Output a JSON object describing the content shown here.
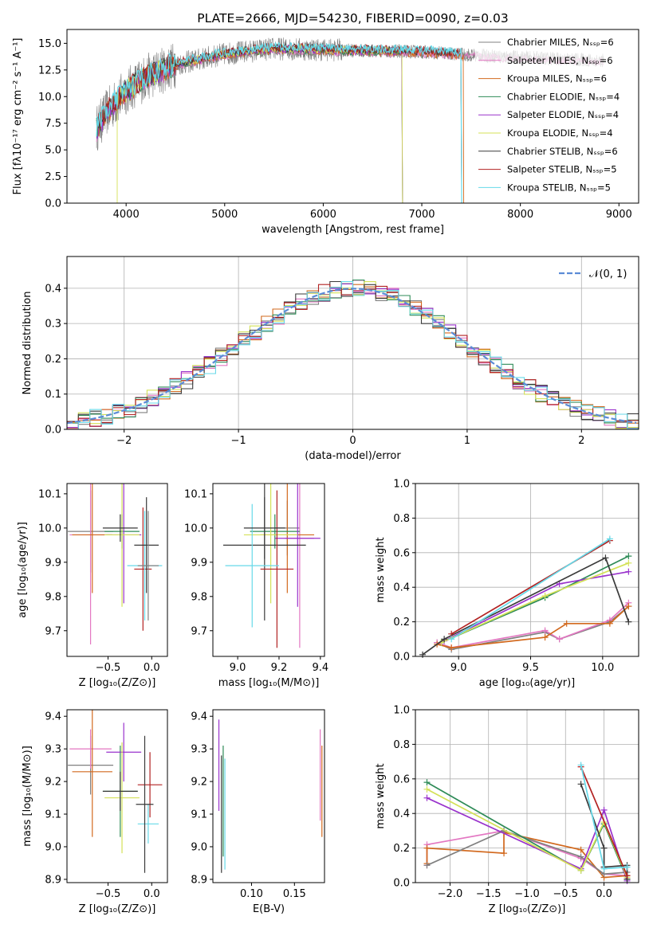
{
  "title": "PLATE=2666, MJD=54230, FIBERID=0090, z=0.03",
  "colors": {
    "Chabrier MILES": "#808080",
    "Salpeter MILES": "#e377c2",
    "Kroupa MILES": "#d2691e",
    "Chabrier ELODIE": "#2e8b57",
    "Salpeter ELODIE": "#9932cc",
    "Kroupa ELODIE": "#d4e157",
    "Chabrier STELIB": "#3a3a3a",
    "Salpeter STELIB": "#b22222",
    "Kroupa STELIB": "#66d9e8",
    "normal_curve": "#5b8bd6"
  },
  "chart_data": [
    {
      "id": "spectrum",
      "type": "line",
      "title": "PLATE=2666, MJD=54230, FIBERID=0090, z=0.03",
      "xlabel": "wavelength [Angstrom, rest frame]",
      "ylabel": "Flux [fλ10⁻¹⁷ erg cm⁻² s⁻¹ A⁻¹]",
      "xlim": [
        3400,
        9200
      ],
      "ylim": [
        0,
        16.3
      ],
      "xticks": [
        "4000",
        "5000",
        "6000",
        "7000",
        "8000",
        "9000"
      ],
      "yticks": [
        "0.0",
        "2.5",
        "5.0",
        "7.5",
        "10.0",
        "12.5",
        "15.0"
      ],
      "legend": [
        "Chabrier MILES, Nₛₛₚ=6",
        "Salpeter MILES, Nₛₛₚ=6",
        "Kroupa MILES, Nₛₛₚ=6",
        "Chabrier ELODIE, Nₛₛₚ=4",
        "Salpeter ELODIE, Nₛₛₚ=4",
        "Kroupa ELODIE, Nₛₛₚ=4",
        "Chabrier STELIB, Nₛₛₚ=6",
        "Salpeter STELIB, Nₛₛₚ=5",
        "Kroupa STELIB, Nₛₛₚ=5"
      ],
      "legend_position": "upper-right",
      "data_x_range": [
        3700,
        8850
      ],
      "continuum": [
        [
          3700,
          7
        ],
        [
          3800,
          8.5
        ],
        [
          3900,
          9.5
        ],
        [
          4000,
          10.5
        ],
        [
          4200,
          11.8
        ],
        [
          4500,
          13
        ],
        [
          5000,
          14
        ],
        [
          5500,
          14.5
        ],
        [
          6000,
          14.4
        ],
        [
          6500,
          14.3
        ],
        [
          7000,
          14.2
        ],
        [
          7500,
          13.9
        ],
        [
          8000,
          13.7
        ],
        [
          8500,
          13.5
        ],
        [
          8850,
          13.4
        ]
      ]
    },
    {
      "id": "residuals",
      "type": "line",
      "xlabel": "(data-model)/error",
      "ylabel": "Normed distribution",
      "xlim": [
        -2.5,
        2.5
      ],
      "ylim": [
        0,
        0.49
      ],
      "xticks": [
        "−2",
        "−1",
        "0",
        "1",
        "2"
      ],
      "yticks": [
        "0.0",
        "0.1",
        "0.2",
        "0.3",
        "0.4"
      ],
      "legend": "𝒩(0, 1)",
      "legend_position": "upper-right",
      "bin_width": 0.1,
      "description_curve": "gaussian N(0,1) pdf"
    },
    {
      "id": "age_vs_Z",
      "type": "scatter",
      "xlabel": "Z [log₁₀(Z/Z⊙)]",
      "ylabel": "age  [log₁₀(age/yr)]",
      "xlim": [
        -0.97,
        0.18
      ],
      "ylim": [
        9.625,
        10.13
      ],
      "xticks": [
        "−0.5",
        "0.0"
      ],
      "yticks": [
        "9.7",
        "9.8",
        "9.9",
        "10.0",
        "10.1"
      ],
      "points": [
        {
          "model": "Chabrier MILES",
          "x": -0.7,
          "y": 9.99,
          "xerr": 0.26,
          "yerr": 0.12
        },
        {
          "model": "Salpeter MILES",
          "x": -0.7,
          "y": 9.98,
          "xerr": 0.24,
          "yerr": 0.32
        },
        {
          "model": "Kroupa MILES",
          "x": -0.68,
          "y": 9.98,
          "xerr": 0.23,
          "yerr": 0.17
        },
        {
          "model": "Chabrier ELODIE",
          "x": -0.34,
          "y": 9.99,
          "xerr": 0.2,
          "yerr": 0.05
        },
        {
          "model": "Salpeter ELODIE",
          "x": -0.32,
          "y": 9.98,
          "xerr": 0.2,
          "yerr": 0.2
        },
        {
          "model": "Kroupa ELODIE",
          "x": -0.34,
          "y": 9.98,
          "xerr": 0.2,
          "yerr": 0.21
        },
        {
          "model": "Chabrier STELIB",
          "x": -0.36,
          "y": 10.0,
          "xerr": 0.2,
          "yerr": 0.04
        },
        {
          "model": "Salpeter STELIB",
          "x": -0.1,
          "y": 9.88,
          "xerr": 0.1,
          "yerr": 0.18
        },
        {
          "model": "Kroupa STELIB",
          "x": -0.08,
          "y": 9.89,
          "xerr": 0.2,
          "yerr": 0.16
        },
        {
          "model": "Chabrier STELIB",
          "x": -0.06,
          "y": 9.95,
          "xerr": 0.14,
          "yerr": 0.14
        },
        {
          "model": "Chabrier MILES",
          "x": -0.04,
          "y": 9.89,
          "xerr": 0.12,
          "yerr": 0.16
        }
      ]
    },
    {
      "id": "age_vs_mass",
      "type": "scatter",
      "xlabel": "mass [log₁₀(M/M⊙)]",
      "ylabel": "",
      "xlim": [
        8.88,
        9.42
      ],
      "ylim": [
        9.625,
        10.13
      ],
      "xticks": [
        "9.0",
        "9.2",
        "9.4"
      ],
      "yticks": [
        "9.7",
        "9.8",
        "9.9",
        "10.0",
        "10.1"
      ],
      "points": [
        {
          "model": "Chabrier MILES",
          "x": 9.24,
          "y": 10.0,
          "xerr": 0.06,
          "yerr": 0.08
        },
        {
          "model": "Salpeter MILES",
          "x": 9.3,
          "y": 9.97,
          "xerr": 0.07,
          "yerr": 0.32
        },
        {
          "model": "Kroupa MILES",
          "x": 9.24,
          "y": 9.98,
          "xerr": 0.13,
          "yerr": 0.17
        },
        {
          "model": "Chabrier ELODIE",
          "x": 9.18,
          "y": 9.99,
          "xerr": 0.12,
          "yerr": 0.05
        },
        {
          "model": "Salpeter ELODIE",
          "x": 9.29,
          "y": 9.97,
          "xerr": 0.11,
          "yerr": 0.2
        },
        {
          "model": "Kroupa ELODIE",
          "x": 9.16,
          "y": 9.98,
          "xerr": 0.13,
          "yerr": 0.2
        },
        {
          "model": "Chabrier STELIB",
          "x": 9.13,
          "y": 9.95,
          "xerr": 0.2,
          "yerr": 0.22
        },
        {
          "model": "Salpeter STELIB",
          "x": 9.19,
          "y": 9.88,
          "xerr": 0.08,
          "yerr": 0.23
        },
        {
          "model": "Kroupa STELIB",
          "x": 9.07,
          "y": 9.89,
          "xerr": 0.13,
          "yerr": 0.18
        },
        {
          "model": "Chabrier STELIB",
          "x": 9.13,
          "y": 10.0,
          "xerr": 0.1,
          "yerr": 0.09
        }
      ]
    },
    {
      "id": "weight_vs_age",
      "type": "line",
      "xlabel": "age  [log₁₀(age/yr)]",
      "ylabel": "mass weight",
      "xlim": [
        8.7,
        10.25
      ],
      "ylim": [
        0,
        1.0
      ],
      "xticks": [
        "9.0",
        "9.5",
        "10.0"
      ],
      "yticks": [
        "0.0",
        "0.2",
        "0.4",
        "0.6",
        "0.8",
        "1.0"
      ],
      "series": [
        {
          "model": "Chabrier MILES",
          "x": [
            8.85,
            8.95,
            9.6,
            9.7,
            10.05,
            10.18
          ],
          "y": [
            0.08,
            0.04,
            0.14,
            0.1,
            0.2,
            0.29
          ]
        },
        {
          "model": "Salpeter MILES",
          "x": [
            8.85,
            8.95,
            9.6,
            9.7,
            10.05,
            10.18
          ],
          "y": [
            0.08,
            0.05,
            0.15,
            0.1,
            0.21,
            0.31
          ]
        },
        {
          "model": "Kroupa MILES",
          "x": [
            8.85,
            8.95,
            9.6,
            9.75,
            10.05,
            10.18
          ],
          "y": [
            0.07,
            0.05,
            0.11,
            0.19,
            0.19,
            0.29
          ]
        },
        {
          "model": "Chabrier ELODIE",
          "x": [
            8.88,
            9.6,
            10.18
          ],
          "y": [
            0.08,
            0.34,
            0.58
          ]
        },
        {
          "model": "Salpeter ELODIE",
          "x": [
            8.9,
            9.7,
            10.18
          ],
          "y": [
            0.09,
            0.42,
            0.49
          ]
        },
        {
          "model": "Kroupa ELODIE",
          "x": [
            8.88,
            9.6,
            10.18
          ],
          "y": [
            0.08,
            0.35,
            0.54
          ]
        },
        {
          "model": "Chabrier STELIB",
          "x": [
            8.75,
            8.9,
            10.02,
            10.18
          ],
          "y": [
            0.01,
            0.1,
            0.57,
            0.2
          ]
        },
        {
          "model": "Salpeter STELIB",
          "x": [
            8.95,
            10.05
          ],
          "y": [
            0.13,
            0.67
          ]
        },
        {
          "model": "Kroupa STELIB",
          "x": [
            8.95,
            10.05
          ],
          "y": [
            0.1,
            0.68
          ]
        }
      ]
    },
    {
      "id": "mass_vs_Z",
      "type": "scatter",
      "xlabel": "Z [log₁₀(Z/Z⊙)]",
      "ylabel": "mass [log₁₀(M/M⊙)]",
      "xlim": [
        -0.97,
        0.18
      ],
      "ylim": [
        8.89,
        9.42
      ],
      "xticks": [
        "−0.5",
        "0.0"
      ],
      "yticks": [
        "8.9",
        "9.0",
        "9.1",
        "9.2",
        "9.3",
        "9.4"
      ],
      "points": [
        {
          "model": "Chabrier MILES",
          "x": -0.7,
          "y": 9.25,
          "xerr": 0.26,
          "yerr": 0.09
        },
        {
          "model": "Salpeter MILES",
          "x": -0.7,
          "y": 9.3,
          "xerr": 0.24,
          "yerr": 0.06
        },
        {
          "model": "Kroupa MILES",
          "x": -0.68,
          "y": 9.23,
          "xerr": 0.23,
          "yerr": 0.2
        },
        {
          "model": "Chabrier ELODIE",
          "x": -0.36,
          "y": 9.17,
          "xerr": 0.2,
          "yerr": 0.14
        },
        {
          "model": "Salpeter ELODIE",
          "x": -0.32,
          "y": 9.29,
          "xerr": 0.2,
          "yerr": 0.09
        },
        {
          "model": "Kroupa ELODIE",
          "x": -0.34,
          "y": 9.15,
          "xerr": 0.2,
          "yerr": 0.17
        },
        {
          "model": "Chabrier STELIB",
          "x": -0.36,
          "y": 9.17,
          "xerr": 0.2,
          "yerr": 0.06
        },
        {
          "model": "Salpeter STELIB",
          "x": -0.02,
          "y": 9.19,
          "xerr": 0.14,
          "yerr": 0.1
        },
        {
          "model": "Kroupa STELIB",
          "x": -0.04,
          "y": 9.07,
          "xerr": 0.12,
          "yerr": 0.06
        },
        {
          "model": "Chabrier STELIB",
          "x": -0.08,
          "y": 9.13,
          "xerr": 0.1,
          "yerr": 0.21
        }
      ]
    },
    {
      "id": "mass_vs_EBV",
      "type": "scatter",
      "xlabel": "E(B-V)",
      "ylabel": "",
      "xlim": [
        0.055,
        0.185
      ],
      "ylim": [
        8.89,
        9.42
      ],
      "xticks": [
        "0.10",
        "0.15"
      ],
      "yticks": [
        "8.9",
        "9.0",
        "9.1",
        "9.2",
        "9.3",
        "9.4"
      ],
      "points": [
        {
          "model": "Salpeter ELODIE",
          "x": 0.062,
          "y": 9.25,
          "yerr": 0.14
        },
        {
          "model": "Chabrier STELIB",
          "x": 0.065,
          "y": 9.1,
          "yerr": 0.18
        },
        {
          "model": "Chabrier ELODIE",
          "x": 0.067,
          "y": 9.14,
          "yerr": 0.17
        },
        {
          "model": "Kroupa STELIB",
          "x": 0.069,
          "y": 9.1,
          "yerr": 0.17
        },
        {
          "model": "Salpeter MILES",
          "x": 0.18,
          "y": 9.22,
          "yerr": 0.14
        },
        {
          "model": "Kroupa MILES",
          "x": 0.182,
          "y": 9.17,
          "yerr": 0.14
        }
      ]
    },
    {
      "id": "weight_vs_Z",
      "type": "line",
      "xlabel": "Z [log₁₀(Z/Z⊙)]",
      "ylabel": "mass weight",
      "xlim": [
        -2.45,
        0.45
      ],
      "ylim": [
        0,
        1.0
      ],
      "xticks": [
        "−2.0",
        "−1.5",
        "−1.0",
        "−0.5",
        "0.0"
      ],
      "yticks": [
        "0.0",
        "0.2",
        "0.4",
        "0.6",
        "0.8",
        "1.0"
      ],
      "series": [
        {
          "model": "Salpeter MILES",
          "x": [
            -2.3,
            -2.3,
            -1.3,
            -0.3,
            0.0,
            0.3
          ],
          "y": [
            0.1,
            0.22,
            0.3,
            0.14,
            0.05,
            0.04
          ]
        },
        {
          "model": "Kroupa MILES",
          "x": [
            -2.3,
            -2.3,
            -1.3,
            -1.3,
            -0.3,
            0.0,
            0.3
          ],
          "y": [
            0.11,
            0.2,
            0.17,
            0.29,
            0.19,
            0.03,
            0.04
          ]
        },
        {
          "model": "Chabrier MILES",
          "x": [
            -2.3,
            -1.3,
            -0.3,
            0.0,
            0.3
          ],
          "y": [
            0.1,
            0.3,
            0.15,
            0.05,
            0.06
          ]
        },
        {
          "model": "Chabrier ELODIE",
          "x": [
            -2.3,
            -0.3,
            0.0,
            0.3
          ],
          "y": [
            0.58,
            0.07,
            0.34,
            0.02
          ]
        },
        {
          "model": "Salpeter ELODIE",
          "x": [
            -2.3,
            -0.3,
            0.0,
            0.3
          ],
          "y": [
            0.49,
            0.08,
            0.42,
            0.01
          ]
        },
        {
          "model": "Kroupa ELODIE",
          "x": [
            -2.3,
            -0.3,
            0.0,
            0.3
          ],
          "y": [
            0.54,
            0.07,
            0.35,
            0.03
          ]
        },
        {
          "model": "Chabrier STELIB",
          "x": [
            -0.3,
            0.0,
            0.0,
            0.3,
            0.3
          ],
          "y": [
            0.57,
            0.2,
            0.09,
            0.1,
            0.02
          ]
        },
        {
          "model": "Salpeter STELIB",
          "x": [
            -0.3,
            0.3
          ],
          "y": [
            0.67,
            0.04
          ]
        },
        {
          "model": "Kroupa STELIB",
          "x": [
            -0.3,
            0.0,
            0.3
          ],
          "y": [
            0.68,
            0.08,
            0.09
          ]
        }
      ]
    }
  ]
}
